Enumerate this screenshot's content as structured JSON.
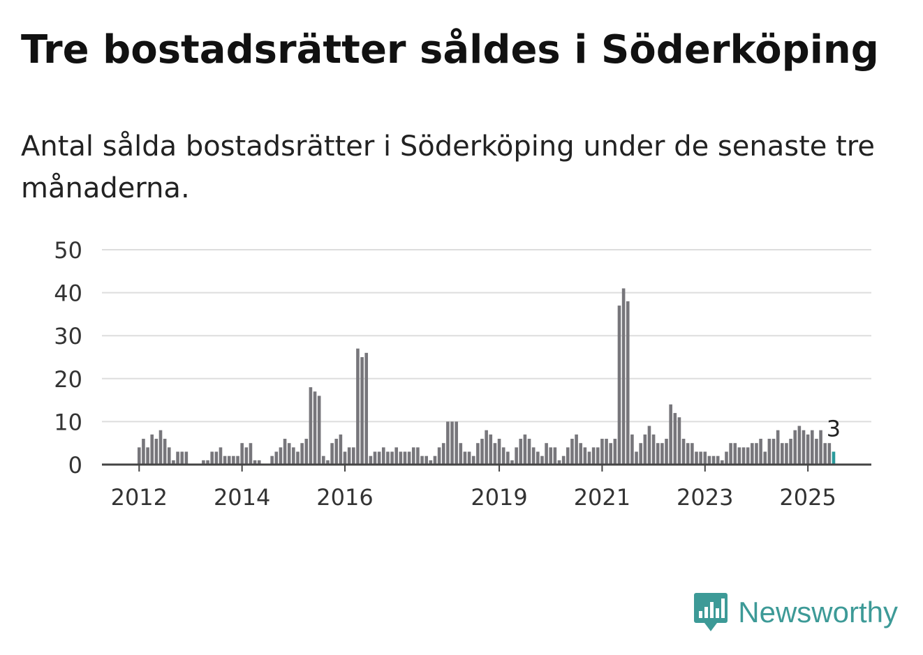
{
  "title": "Tre bostadsrätter såldes i Söderköping",
  "subtitle": "Antal sålda bostadsrätter i Söderköping under de senaste tre månaderna.",
  "brand": {
    "name": "Newsworthy",
    "logo_icon": "newsworthy-bar-chart-icon",
    "color": "#3d9a97"
  },
  "colors": {
    "bar": "#77767b",
    "highlight": "#2a9a9b",
    "grid": "#dddddd",
    "axis": "#444444"
  },
  "chart_data": {
    "type": "bar",
    "title": "Tre bostadsrätter såldes i Söderköping",
    "xlabel": "",
    "ylabel": "",
    "ylim": [
      0,
      50
    ],
    "yticks": [
      0,
      10,
      20,
      30,
      40,
      50
    ],
    "grid": true,
    "legend": "none",
    "start_month": "2012-01",
    "xticks": [
      {
        "label": "2012",
        "month": "2012-01"
      },
      {
        "label": "2014",
        "month": "2014-01"
      },
      {
        "label": "2016",
        "month": "2016-01"
      },
      {
        "label": "2019",
        "month": "2019-01"
      },
      {
        "label": "2021",
        "month": "2021-01"
      },
      {
        "label": "2023",
        "month": "2023-01"
      },
      {
        "label": "2025",
        "month": "2025-01"
      }
    ],
    "values": [
      4,
      6,
      4,
      7,
      6,
      8,
      6,
      4,
      1,
      3,
      3,
      3,
      0,
      0,
      0,
      1,
      1,
      3,
      3,
      4,
      2,
      2,
      2,
      2,
      5,
      4,
      5,
      1,
      1,
      0,
      0,
      2,
      3,
      4,
      6,
      5,
      4,
      3,
      5,
      6,
      18,
      17,
      16,
      2,
      1,
      5,
      6,
      7,
      3,
      4,
      4,
      27,
      25,
      26,
      2,
      3,
      3,
      4,
      3,
      3,
      4,
      3,
      3,
      3,
      4,
      4,
      2,
      2,
      1,
      2,
      4,
      5,
      10,
      10,
      10,
      5,
      3,
      3,
      2,
      5,
      6,
      8,
      7,
      5,
      6,
      4,
      3,
      1,
      4,
      6,
      7,
      6,
      4,
      3,
      2,
      5,
      4,
      4,
      1,
      2,
      4,
      6,
      7,
      5,
      4,
      3,
      4,
      4,
      6,
      6,
      5,
      6,
      37,
      41,
      38,
      7,
      3,
      5,
      7,
      9,
      7,
      5,
      5,
      6,
      14,
      12,
      11,
      6,
      5,
      5,
      3,
      3,
      3,
      2,
      2,
      2,
      1,
      3,
      5,
      5,
      4,
      4,
      4,
      5,
      5,
      6,
      3,
      6,
      6,
      8,
      5,
      5,
      6,
      8,
      9,
      8,
      7,
      8,
      6,
      8,
      5,
      5,
      3
    ],
    "highlight_last": true,
    "annotation": {
      "text": "3",
      "target": "last"
    }
  }
}
